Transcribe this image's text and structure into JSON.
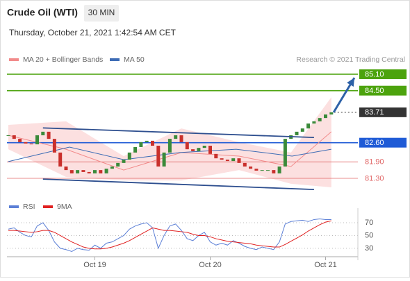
{
  "header": {
    "title": "Crude Oil (WTI)",
    "interval": "30 MIN",
    "timestamp": "Thursday, October 21, 2021 1:42:54 AM CET"
  },
  "chart_data": [
    {
      "type": "candlestick",
      "credit": "Research © 2021 Trading Central",
      "up_color": "#3a8a3a",
      "down_color": "#c9302c",
      "values": [
        82.87,
        82.74,
        82.62,
        82.57,
        82.54,
        82.87,
        83.0,
        82.74,
        82.24,
        81.73,
        81.6,
        81.48,
        81.6,
        81.53,
        81.48,
        81.6,
        81.48,
        81.65,
        81.73,
        81.86,
        81.98,
        82.24,
        82.44,
        82.62,
        82.67,
        82.49,
        81.73,
        82.24,
        82.74,
        82.87,
        82.62,
        82.36,
        82.29,
        82.41,
        82.49,
        82.19,
        82.03,
        81.98,
        81.93,
        82.03,
        81.86,
        81.73,
        81.65,
        81.58,
        81.6,
        81.6,
        81.48,
        81.73,
        82.74,
        82.87,
        83.0,
        83.12,
        83.3,
        83.38,
        83.5,
        83.63,
        83.71
      ],
      "ylim": [
        80.59,
        85.53
      ],
      "series": [
        {
          "name": "MA 20 + Bollinger Bands",
          "color": "#f28b8b",
          "band_color": "#fbd8d8",
          "x": [
            0,
            10,
            20,
            30,
            40,
            49,
            56
          ],
          "values": [
            82.87,
            82.36,
            81.6,
            82.24,
            82.11,
            81.73,
            83.0
          ],
          "upper": [
            83.25,
            83.38,
            82.11,
            83.12,
            82.62,
            82.24,
            84.26
          ],
          "lower": [
            82.36,
            81.35,
            81.22,
            81.22,
            81.6,
            81.1,
            80.97
          ]
        },
        {
          "name": "MA 50",
          "color": "#3d6cb5",
          "x": [
            0,
            10.6,
            20,
            29.7,
            39.5,
            49.2,
            56
          ],
          "values": [
            81.91,
            82.44,
            81.98,
            82.24,
            82.36,
            82.11,
            82.36
          ]
        }
      ],
      "levels": [
        {
          "value": 85.1,
          "label": "85.10",
          "color": "#4ca30d",
          "line": "solid",
          "box": true
        },
        {
          "value": 84.5,
          "label": "84.50",
          "color": "#4ca30d",
          "line": "solid",
          "box": true
        },
        {
          "value": 83.71,
          "color": "#333333",
          "line": "dotted",
          "box": true
        },
        {
          "value": 82.6,
          "label": "82.60",
          "color": "#1f5bd6",
          "line": "solid",
          "box": true
        },
        {
          "value": 81.9,
          "label": "81.90",
          "color": "#e06666",
          "line": "solid",
          "box": false
        },
        {
          "value": 81.3,
          "label": "81.30",
          "color": "#e06666",
          "line": "solid",
          "box": false
        }
      ],
      "trendlines": [
        {
          "x": [
            6,
            53
          ],
          "values": [
            83.14,
            82.79
          ],
          "color": "#2e4f8f",
          "arrow": false
        },
        {
          "x": [
            6,
            53
          ],
          "values": [
            81.27,
            80.89
          ],
          "color": "#2e4f8f",
          "arrow": false
        },
        {
          "x": [
            56.4,
            60
          ],
          "values": [
            83.71,
            84.97
          ],
          "color": "#2e62a8",
          "arrow": true
        }
      ]
    },
    {
      "type": "line",
      "ylim": [
        19,
        82
      ],
      "yticks": [
        30,
        50,
        70
      ],
      "grid": true,
      "categories": [
        null,
        null,
        null,
        null,
        null,
        null,
        null,
        null,
        null,
        null,
        null,
        null,
        null,
        null,
        null,
        "Oct 19",
        null,
        null,
        null,
        null,
        null,
        null,
        null,
        null,
        null,
        null,
        null,
        null,
        null,
        null,
        null,
        null,
        null,
        null,
        null,
        "Oct 20",
        null,
        null,
        null,
        null,
        null,
        null,
        null,
        null,
        null,
        null,
        null,
        null,
        null,
        null,
        null,
        null,
        null,
        null,
        null,
        "Oct 21",
        null
      ],
      "series": [
        {
          "name": "RSI",
          "color": "#5b7fd6",
          "values": [
            60,
            62,
            55,
            50,
            48,
            65,
            70,
            58,
            40,
            30,
            28,
            25,
            30,
            28,
            27,
            35,
            30,
            38,
            40,
            45,
            50,
            60,
            65,
            68,
            70,
            62,
            30,
            50,
            65,
            68,
            58,
            45,
            42,
            50,
            55,
            40,
            35,
            38,
            35,
            42,
            38,
            33,
            30,
            28,
            32,
            30,
            28,
            40,
            68,
            72,
            73,
            74,
            72,
            75,
            76,
            75,
            75
          ]
        },
        {
          "name": "9MA",
          "color": "#e02020",
          "values": [
            58,
            58,
            57,
            56,
            55,
            56,
            58,
            58,
            55,
            50,
            45,
            40,
            36,
            32,
            30,
            29,
            29,
            30,
            32,
            35,
            38,
            42,
            47,
            52,
            57,
            62,
            60,
            58,
            58,
            57,
            56,
            55,
            52,
            50,
            50,
            48,
            45,
            43,
            41,
            40,
            39,
            38,
            37,
            35,
            34,
            33,
            32,
            32,
            36,
            41,
            46,
            51,
            57,
            62,
            67,
            71,
            73
          ]
        }
      ]
    }
  ]
}
